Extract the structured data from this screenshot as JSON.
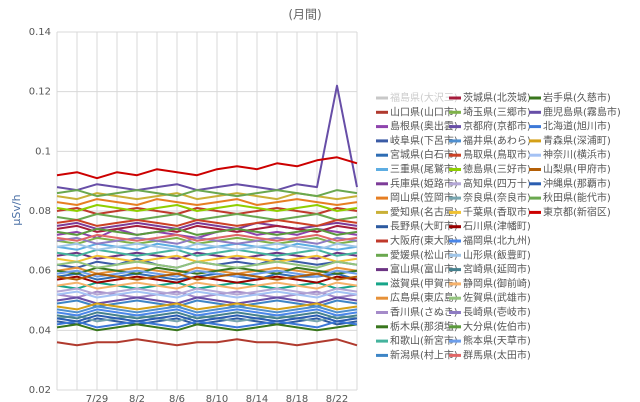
{
  "chart_data": {
    "type": "line",
    "title": "(月間)",
    "y_label": "μSv/h",
    "categories": [
      null,
      null,
      "7/29",
      null,
      "8/2",
      null,
      "8/6",
      null,
      "8/10",
      null,
      "8/14",
      null,
      "8/18",
      null,
      "8/22",
      null
    ],
    "ylim": [
      0.02,
      0.14
    ],
    "yticks": [
      0.02,
      0.04,
      0.06,
      0.08,
      0.1,
      0.12,
      0.14
    ],
    "grid": true,
    "series": [
      {
        "name": "福島県(大沢三)",
        "color": "#c8c8c8",
        "hidden": true
      },
      {
        "name": "山口県(山口市)",
        "color": "#b03a2e",
        "values": [
          0.036,
          0.035,
          0.036,
          0.036,
          0.037,
          0.036,
          0.035,
          0.036,
          0.036,
          0.037,
          0.036,
          0.036,
          0.035,
          0.036,
          0.037,
          0.035
        ]
      },
      {
        "name": "島根県(奥出雲)",
        "color": "#8e44ad",
        "values": [
          0.072,
          0.073,
          0.071,
          0.074,
          0.072,
          0.073,
          0.072,
          0.071,
          0.073,
          0.074,
          0.072,
          0.073,
          0.072,
          0.074,
          0.073,
          0.072
        ]
      },
      {
        "name": "岐阜県(下呂市)",
        "color": "#3b5ba5",
        "values": [
          0.062,
          0.061,
          0.063,
          0.062,
          0.064,
          0.062,
          0.061,
          0.063,
          0.062,
          0.063,
          0.062,
          0.064,
          0.063,
          0.062,
          0.063,
          0.062
        ]
      },
      {
        "name": "宮城県(白石市)",
        "color": "#2e6db4",
        "values": [
          0.058,
          0.059,
          0.057,
          0.058,
          0.059,
          0.058,
          0.057,
          0.058,
          0.059,
          0.058,
          0.057,
          0.059,
          0.058,
          0.058,
          0.059,
          0.057
        ]
      },
      {
        "name": "三重県(尾鷲市)",
        "color": "#5dade2",
        "values": [
          0.068,
          0.067,
          0.069,
          0.068,
          0.067,
          0.069,
          0.068,
          0.067,
          0.068,
          0.069,
          0.068,
          0.067,
          0.069,
          0.068,
          0.067,
          0.068
        ]
      },
      {
        "name": "兵庫県(姫路市)",
        "color": "#7d3c98",
        "values": [
          0.075,
          0.076,
          0.074,
          0.075,
          0.076,
          0.075,
          0.074,
          0.076,
          0.075,
          0.074,
          0.076,
          0.075,
          0.074,
          0.075,
          0.076,
          0.075
        ]
      },
      {
        "name": "岡山県(笠岡市)",
        "color": "#e67e22",
        "values": [
          0.083,
          0.082,
          0.084,
          0.083,
          0.082,
          0.084,
          0.083,
          0.082,
          0.083,
          0.084,
          0.082,
          0.083,
          0.084,
          0.083,
          0.082,
          0.083
        ]
      },
      {
        "name": "愛知県(名古屋)",
        "color": "#c9b037",
        "values": [
          0.085,
          0.084,
          0.086,
          0.085,
          0.084,
          0.085,
          0.086,
          0.084,
          0.085,
          0.086,
          0.085,
          0.084,
          0.086,
          0.085,
          0.084,
          0.085
        ]
      },
      {
        "name": "長野県(大町市)",
        "color": "#2c5aa0",
        "values": [
          0.043,
          0.042,
          0.044,
          0.043,
          0.042,
          0.043,
          0.044,
          0.042,
          0.043,
          0.044,
          0.043,
          0.042,
          0.043,
          0.044,
          0.042,
          0.043
        ]
      },
      {
        "name": "大阪府(東大阪)",
        "color": "#c0392b",
        "values": [
          0.08,
          0.081,
          0.079,
          0.08,
          0.081,
          0.08,
          0.079,
          0.081,
          0.08,
          0.079,
          0.08,
          0.081,
          0.08,
          0.079,
          0.081,
          0.08
        ]
      },
      {
        "name": "愛媛県(松山市)",
        "color": "#6aa84f",
        "values": [
          0.078,
          0.077,
          0.079,
          0.078,
          0.077,
          0.078,
          0.079,
          0.077,
          0.078,
          0.079,
          0.078,
          0.077,
          0.078,
          0.079,
          0.077,
          0.078
        ]
      },
      {
        "name": "富山県(富山市)",
        "color": "#6c3483",
        "values": [
          0.065,
          0.066,
          0.064,
          0.065,
          0.066,
          0.065,
          0.064,
          0.066,
          0.065,
          0.064,
          0.065,
          0.066,
          0.065,
          0.064,
          0.066,
          0.065
        ]
      },
      {
        "name": "滋賀県(甲賀市)",
        "color": "#17a589",
        "values": [
          0.055,
          0.054,
          0.056,
          0.055,
          0.054,
          0.055,
          0.056,
          0.054,
          0.055,
          0.056,
          0.055,
          0.054,
          0.055,
          0.056,
          0.054,
          0.055
        ]
      },
      {
        "name": "広島県(東広島)",
        "color": "#e69138",
        "values": [
          0.06,
          0.061,
          0.059,
          0.06,
          0.061,
          0.06,
          0.059,
          0.061,
          0.06,
          0.059,
          0.06,
          0.061,
          0.06,
          0.059,
          0.061,
          0.06
        ]
      },
      {
        "name": "香川県(さぬき)",
        "color": "#a58bc9",
        "values": [
          0.052,
          0.051,
          0.053,
          0.052,
          0.051,
          0.052,
          0.053,
          0.051,
          0.052,
          0.053,
          0.052,
          0.051,
          0.052,
          0.053,
          0.051,
          0.052
        ]
      },
      {
        "name": "栃木県(那須塩)",
        "color": "#38761d",
        "values": [
          0.06,
          0.059,
          0.061,
          0.06,
          0.059,
          0.061,
          0.06,
          0.059,
          0.06,
          0.061,
          0.06,
          0.059,
          0.061,
          0.06,
          0.059,
          0.06
        ]
      },
      {
        "name": "和歌山(新宮市)",
        "color": "#45b39d",
        "values": [
          0.066,
          0.065,
          0.067,
          0.066,
          0.065,
          0.066,
          0.067,
          0.065,
          0.066,
          0.067,
          0.066,
          0.065,
          0.066,
          0.067,
          0.065,
          0.066
        ]
      },
      {
        "name": "新潟県(村上市)",
        "color": "#3d85c6",
        "values": [
          0.049,
          0.05,
          0.048,
          0.049,
          0.05,
          0.049,
          0.048,
          0.05,
          0.049,
          0.048,
          0.049,
          0.05,
          0.049,
          0.048,
          0.05,
          0.049
        ]
      },
      {
        "name": "茨城県(北茨城)",
        "color": "#a61c3c",
        "values": [
          0.074,
          0.075,
          0.073,
          0.074,
          0.075,
          0.074,
          0.073,
          0.075,
          0.074,
          0.073,
          0.074,
          0.075,
          0.074,
          0.073,
          0.075,
          0.074
        ]
      },
      {
        "name": "埼玉県(三郷市)",
        "color": "#7fb24a",
        "values": [
          0.07,
          0.069,
          0.071,
          0.07,
          0.069,
          0.07,
          0.071,
          0.069,
          0.07,
          0.071,
          0.07,
          0.069,
          0.07,
          0.071,
          0.069,
          0.07
        ]
      },
      {
        "name": "京都府(京都市)",
        "color": "#674ea7",
        "values": [
          0.05,
          0.051,
          0.049,
          0.05,
          0.051,
          0.05,
          0.049,
          0.051,
          0.05,
          0.049,
          0.05,
          0.051,
          0.05,
          0.049,
          0.051,
          0.05
        ]
      },
      {
        "name": "福井県(あわら)",
        "color": "#4f8fcf",
        "values": [
          0.047,
          0.046,
          0.048,
          0.047,
          0.046,
          0.047,
          0.048,
          0.046,
          0.047,
          0.048,
          0.047,
          0.046,
          0.047,
          0.048,
          0.046,
          0.047
        ]
      },
      {
        "name": "鳥取県(鳥取市)",
        "color": "#cc4125",
        "values": [
          0.076,
          0.077,
          0.075,
          0.076,
          0.077,
          0.076,
          0.075,
          0.077,
          0.076,
          0.075,
          0.076,
          0.077,
          0.076,
          0.075,
          0.077,
          0.076
        ]
      },
      {
        "name": "徳島県(三好市)",
        "color": "#8fce00",
        "values": [
          0.081,
          0.08,
          0.082,
          0.081,
          0.08,
          0.081,
          0.082,
          0.08,
          0.081,
          0.082,
          0.081,
          0.08,
          0.081,
          0.082,
          0.08,
          0.081
        ]
      },
      {
        "name": "高知県(四万十)",
        "color": "#b4a7d6",
        "values": [
          0.053,
          0.054,
          0.052,
          0.053,
          0.054,
          0.053,
          0.052,
          0.054,
          0.053,
          0.052,
          0.053,
          0.054,
          0.053,
          0.052,
          0.054,
          0.053
        ]
      },
      {
        "name": "奈良県(奈良市)",
        "color": "#76a5af",
        "values": [
          0.044,
          0.045,
          0.043,
          0.044,
          0.045,
          0.044,
          0.043,
          0.045,
          0.044,
          0.043,
          0.044,
          0.045,
          0.044,
          0.043,
          0.045,
          0.044
        ]
      },
      {
        "name": "千葉県(香取市)",
        "color": "#f1c232",
        "values": [
          0.064,
          0.063,
          0.065,
          0.064,
          0.063,
          0.064,
          0.065,
          0.063,
          0.064,
          0.065,
          0.064,
          0.063,
          0.064,
          0.065,
          0.063,
          0.064
        ]
      },
      {
        "name": "石川県(津幡町)",
        "color": "#990000",
        "values": [
          0.057,
          0.058,
          0.056,
          0.057,
          0.058,
          0.057,
          0.056,
          0.058,
          0.057,
          0.056,
          0.057,
          0.058,
          0.057,
          0.056,
          0.058,
          0.057
        ]
      },
      {
        "name": "福岡県(北九州)",
        "color": "#4a86e8",
        "values": [
          0.046,
          0.045,
          0.047,
          0.046,
          0.045,
          0.046,
          0.047,
          0.045,
          0.046,
          0.047,
          0.046,
          0.045,
          0.046,
          0.047,
          0.045,
          0.046
        ]
      },
      {
        "name": "山形県(飯豊町)",
        "color": "#9fc5e8",
        "values": [
          0.068,
          0.069,
          0.067,
          0.068,
          0.069,
          0.068,
          0.067,
          0.069,
          0.068,
          0.067,
          0.068,
          0.069,
          0.068,
          0.067,
          0.069,
          0.068
        ]
      },
      {
        "name": "宮崎県(延岡市)",
        "color": "#45818e",
        "values": [
          0.045,
          0.044,
          0.046,
          0.045,
          0.044,
          0.045,
          0.046,
          0.044,
          0.045,
          0.046,
          0.045,
          0.044,
          0.045,
          0.046,
          0.044,
          0.045
        ]
      },
      {
        "name": "静岡県(御前崎)",
        "color": "#f6b26b",
        "values": [
          0.055,
          0.056,
          0.054,
          0.055,
          0.056,
          0.055,
          0.054,
          0.056,
          0.055,
          0.054,
          0.055,
          0.056,
          0.055,
          0.054,
          0.056,
          0.055
        ]
      },
      {
        "name": "佐賀県(武雄市)",
        "color": "#93c47d",
        "values": [
          0.062,
          0.063,
          0.061,
          0.062,
          0.063,
          0.062,
          0.061,
          0.063,
          0.062,
          0.061,
          0.062,
          0.063,
          0.062,
          0.061,
          0.063,
          0.062
        ]
      },
      {
        "name": "長崎県(壱岐市)",
        "color": "#8e7cc3",
        "values": [
          0.07,
          0.071,
          0.069,
          0.07,
          0.071,
          0.07,
          0.069,
          0.071,
          0.07,
          0.069,
          0.07,
          0.071,
          0.07,
          0.069,
          0.071,
          0.07
        ]
      },
      {
        "name": "大分県(佐伯市)",
        "color": "#5b9a3c",
        "values": [
          0.073,
          0.072,
          0.074,
          0.073,
          0.072,
          0.073,
          0.074,
          0.072,
          0.073,
          0.074,
          0.073,
          0.072,
          0.073,
          0.074,
          0.072,
          0.073
        ]
      },
      {
        "name": "熊本県(天草市)",
        "color": "#6d9eeb",
        "values": [
          0.059,
          0.06,
          0.058,
          0.059,
          0.06,
          0.059,
          0.058,
          0.06,
          0.059,
          0.058,
          0.059,
          0.06,
          0.059,
          0.058,
          0.06,
          0.059
        ]
      },
      {
        "name": "群馬県(太田市)",
        "color": "#e06666",
        "values": [
          0.071,
          0.07,
          0.072,
          0.071,
          0.07,
          0.071,
          0.072,
          0.07,
          0.071,
          0.072,
          0.071,
          0.07,
          0.071,
          0.072,
          0.07,
          0.071
        ]
      },
      {
        "name": "岩手県(久慈市)",
        "color": "#38761d",
        "values": [
          0.041,
          0.042,
          0.04,
          0.041,
          0.042,
          0.041,
          0.04,
          0.042,
          0.041,
          0.04,
          0.041,
          0.042,
          0.041,
          0.04,
          0.041,
          0.042
        ]
      },
      {
        "name": "鹿児島県(霧島市)",
        "color": "#674ea7",
        "values": [
          0.088,
          0.087,
          0.089,
          0.088,
          0.087,
          0.088,
          0.089,
          0.087,
          0.088,
          0.089,
          0.088,
          0.087,
          0.089,
          0.088,
          0.122,
          0.088
        ]
      },
      {
        "name": "北海道(旭川市)",
        "color": "#3c78d8",
        "values": [
          0.042,
          0.043,
          0.041,
          0.042,
          0.043,
          0.042,
          0.041,
          0.043,
          0.042,
          0.041,
          0.042,
          0.043,
          0.042,
          0.041,
          0.043,
          0.042
        ]
      },
      {
        "name": "青森県(深浦町)",
        "color": "#d4a017",
        "values": [
          0.048,
          0.047,
          0.049,
          0.048,
          0.047,
          0.048,
          0.049,
          0.047,
          0.048,
          0.049,
          0.048,
          0.047,
          0.048,
          0.049,
          0.047,
          0.048
        ]
      },
      {
        "name": "神奈川(横浜市)",
        "color": "#a4c2f4",
        "values": [
          0.052,
          0.053,
          0.051,
          0.052,
          0.053,
          0.052,
          0.051,
          0.053,
          0.052,
          0.051,
          0.052,
          0.053,
          0.052,
          0.051,
          0.053,
          0.052
        ]
      },
      {
        "name": "山梨県(甲府市)",
        "color": "#b45f06",
        "values": [
          0.058,
          0.057,
          0.059,
          0.058,
          0.057,
          0.058,
          0.059,
          0.057,
          0.058,
          0.059,
          0.058,
          0.057,
          0.058,
          0.059,
          0.057,
          0.058
        ]
      },
      {
        "name": "沖縄県(那覇市)",
        "color": "#2a5db0",
        "values": [
          0.044,
          0.043,
          0.045,
          0.044,
          0.043,
          0.044,
          0.045,
          0.043,
          0.044,
          0.045,
          0.044,
          0.043,
          0.044,
          0.045,
          0.043,
          0.044
        ]
      },
      {
        "name": "秋田県(能代市)",
        "color": "#6aa84f",
        "values": [
          0.086,
          0.087,
          0.085,
          0.086,
          0.087,
          0.086,
          0.085,
          0.087,
          0.086,
          0.085,
          0.086,
          0.087,
          0.086,
          0.085,
          0.087,
          0.086
        ]
      },
      {
        "name": "東京都(新宿区)",
        "color": "#cc0000",
        "values": [
          0.092,
          0.093,
          0.091,
          0.093,
          0.092,
          0.094,
          0.093,
          0.092,
          0.094,
          0.095,
          0.094,
          0.096,
          0.095,
          0.097,
          0.098,
          0.096
        ]
      }
    ]
  }
}
